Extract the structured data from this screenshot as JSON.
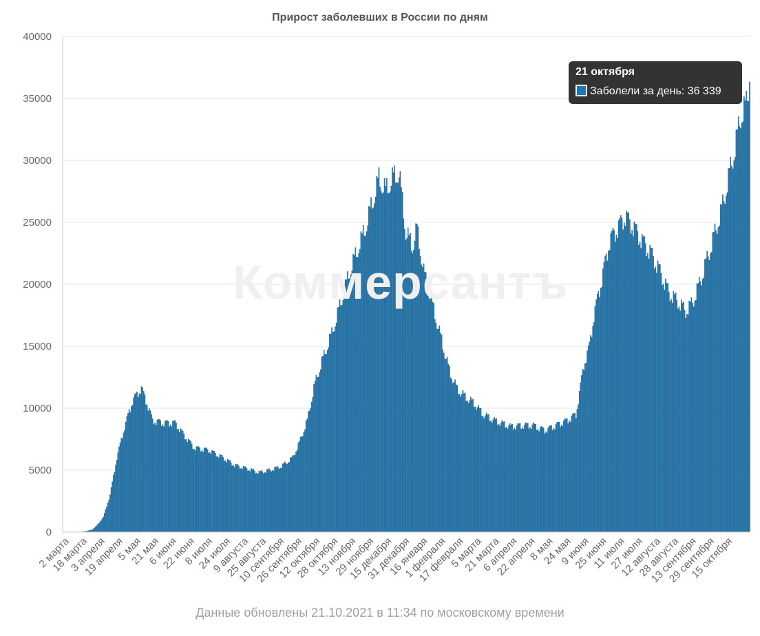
{
  "chart_data": {
    "type": "bar",
    "title": "Прирост заболевших в России по дням",
    "xlabel": "",
    "ylabel": "",
    "ylim": [
      0,
      40000
    ],
    "y_ticks": [
      0,
      5000,
      10000,
      15000,
      20000,
      25000,
      30000,
      35000,
      40000
    ],
    "x_tick_labels": [
      "2 марта",
      "18 марта",
      "3 апреля",
      "19 апреля",
      "5 мая",
      "21 мая",
      "6 июня",
      "22 июня",
      "8 июля",
      "24 июля",
      "9 августа",
      "25 августа",
      "10 сентября",
      "26 сентября",
      "12 октября",
      "28 октября",
      "13 ноября",
      "29 ноября",
      "15 декабря",
      "31 декабря",
      "16 января",
      "1 февраля",
      "17 февраля",
      "5 марта",
      "21 марта",
      "6 апреля",
      "22 апреля",
      "8 мая",
      "24 мая",
      "9 июня",
      "25 июня",
      "11 июля",
      "27 июля",
      "12 августа",
      "28 августа",
      "13 сентября",
      "29 сентября",
      "15 октября"
    ],
    "x_tick_step_days": 16,
    "series": [
      {
        "name": "Заболели за день",
        "color": "#1f77b4",
        "start_date": "2 марта 2020",
        "end_date": "21 октября 2021",
        "keypoints_day_value": [
          [
            0,
            0
          ],
          [
            14,
            0
          ],
          [
            20,
            50
          ],
          [
            26,
            200
          ],
          [
            30,
            500
          ],
          [
            36,
            1200
          ],
          [
            42,
            3000
          ],
          [
            48,
            6000
          ],
          [
            55,
            8500
          ],
          [
            62,
            10600
          ],
          [
            70,
            11600
          ],
          [
            75,
            10400
          ],
          [
            80,
            9000
          ],
          [
            90,
            8800
          ],
          [
            100,
            8800
          ],
          [
            110,
            7600
          ],
          [
            117,
            6800
          ],
          [
            130,
            6600
          ],
          [
            141,
            6100
          ],
          [
            153,
            5400
          ],
          [
            165,
            5100
          ],
          [
            175,
            4800
          ],
          [
            185,
            5000
          ],
          [
            195,
            5300
          ],
          [
            205,
            6000
          ],
          [
            211,
            7200
          ],
          [
            218,
            9000
          ],
          [
            225,
            12000
          ],
          [
            232,
            14000
          ],
          [
            240,
            16000
          ],
          [
            248,
            18500
          ],
          [
            256,
            21000
          ],
          [
            264,
            23000
          ],
          [
            270,
            24500
          ],
          [
            276,
            26500
          ],
          [
            282,
            28500
          ],
          [
            288,
            27500
          ],
          [
            294,
            28500
          ],
          [
            300,
            29000
          ],
          [
            306,
            24200
          ],
          [
            312,
            23000
          ],
          [
            316,
            24500
          ],
          [
            322,
            21000
          ],
          [
            328,
            19000
          ],
          [
            335,
            16500
          ],
          [
            345,
            13000
          ],
          [
            352,
            11500
          ],
          [
            358,
            11000
          ],
          [
            368,
            10300
          ],
          [
            375,
            9500
          ],
          [
            385,
            9000
          ],
          [
            400,
            8500
          ],
          [
            410,
            8600
          ],
          [
            420,
            8600
          ],
          [
            430,
            8200
          ],
          [
            440,
            8600
          ],
          [
            450,
            9000
          ],
          [
            458,
            9500
          ],
          [
            465,
            13500
          ],
          [
            470,
            15000
          ],
          [
            474,
            17500
          ],
          [
            480,
            20000
          ],
          [
            488,
            23500
          ],
          [
            495,
            24500
          ],
          [
            502,
            25500
          ],
          [
            510,
            24500
          ],
          [
            517,
            23500
          ],
          [
            525,
            22500
          ],
          [
            533,
            21000
          ],
          [
            541,
            19300
          ],
          [
            550,
            18500
          ],
          [
            556,
            17800
          ],
          [
            562,
            18500
          ],
          [
            570,
            20500
          ],
          [
            580,
            23500
          ],
          [
            588,
            26000
          ],
          [
            594,
            28500
          ],
          [
            600,
            31000
          ],
          [
            605,
            33500
          ],
          [
            610,
            34500
          ],
          [
            613,
            36339
          ]
        ],
        "last_value": 36339
      }
    ]
  },
  "tooltip": {
    "date": "21 октября",
    "label": "Заболели за день: 36 339"
  },
  "watermark": "Коммерсантъ",
  "footer": "Данные обновлены 21.10.2021 в 11:34 по московскому времени"
}
